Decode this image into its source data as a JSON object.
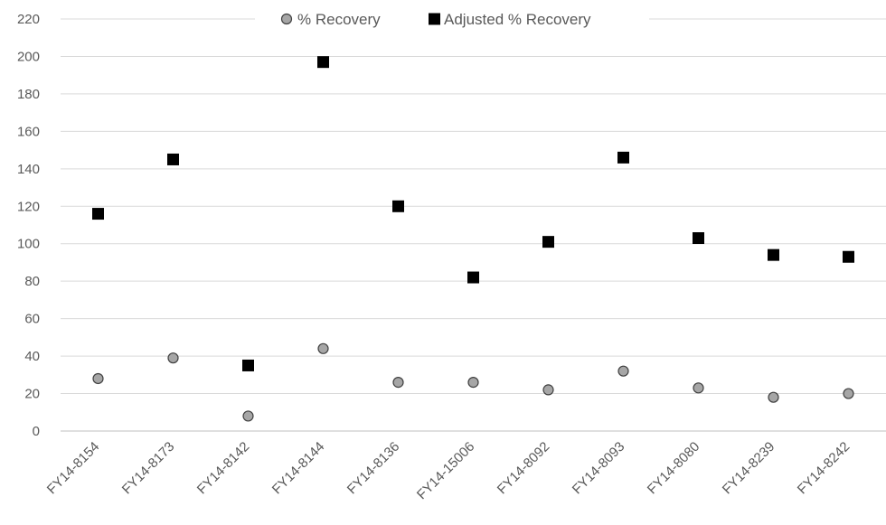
{
  "chart_data": {
    "type": "scatter",
    "title": "",
    "xlabel": "",
    "ylabel": "",
    "ylim": [
      0,
      220
    ],
    "yticks": [
      0,
      20,
      40,
      60,
      80,
      100,
      120,
      140,
      160,
      180,
      200,
      220
    ],
    "grid": true,
    "legend_position": "top",
    "categories": [
      "FY14-8154",
      "FY14-8173",
      "FY14-8142",
      "FY14-8144",
      "FY14-8136",
      "FY14-15006",
      "FY14-8092",
      "FY14-8093",
      "FY14-8080",
      "FY14-8239",
      "FY14-8242"
    ],
    "series": [
      {
        "name": "% Recovery",
        "marker": "circle",
        "color": "#a6a6a6",
        "values": [
          28,
          39,
          8,
          44,
          26,
          26,
          22,
          32,
          23,
          18,
          20
        ]
      },
      {
        "name": "Adjusted % Recovery",
        "marker": "square",
        "color": "#000000",
        "values": [
          116,
          145,
          35,
          197,
          120,
          82,
          101,
          146,
          103,
          94,
          93
        ]
      }
    ]
  }
}
